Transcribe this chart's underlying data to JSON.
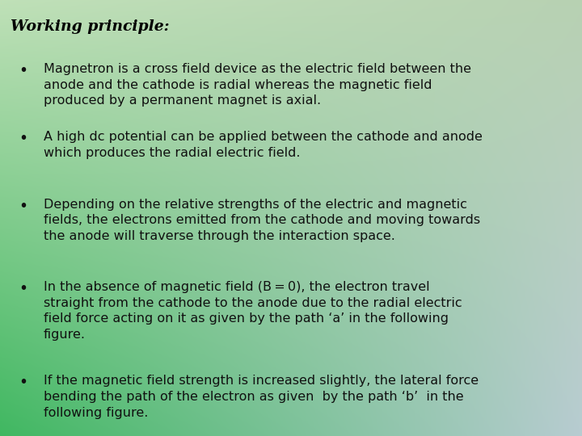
{
  "title": "Working principle:",
  "text_color": "#111111",
  "title_color": "#000000",
  "bullet_points": [
    "Magnetron is a cross field device as the electric field between the\nanode and the cathode is radial whereas the magnetic field\nproduced by a permanent magnet is axial.",
    "A high dc potential can be applied between the cathode and anode\nwhich produces the radial electric field.",
    "Depending on the relative strengths of the electric and magnetic\nfields, the electrons emitted from the cathode and moving towards\nthe anode will traverse through the interaction space.",
    "In the absence of magnetic field (B = 0), the electron travel\nstraight from the cathode to the anode due to the radial electric\nfield force acting on it as given by the path ‘a’ in the following\nfigure.",
    "If the magnetic field strength is increased slightly, the lateral force\nbending the path of the electron as given  by the path ‘b’  in the\nfollowing figure."
  ],
  "bullet_char": "•",
  "font_size_title": 13.5,
  "font_size_body": 11.5,
  "figsize": [
    7.2,
    5.4
  ],
  "dpi": 100,
  "grad_corners": {
    "tl": [
      0.75,
      0.88,
      0.72
    ],
    "tr": [
      0.72,
      0.82,
      0.7
    ],
    "bl": [
      0.25,
      0.72,
      0.38
    ],
    "br": [
      0.72,
      0.8,
      0.82
    ]
  }
}
